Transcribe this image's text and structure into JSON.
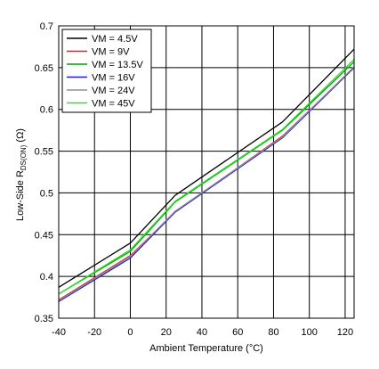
{
  "chart_data": {
    "type": "line",
    "xlabel": "Ambient Temperature (°C)",
    "ylabel_main": "Low-Side R",
    "ylabel_sub": "DS(ON)",
    "ylabel_unit": " (Ω)",
    "xlim": [
      -40,
      125
    ],
    "ylim": [
      0.35,
      0.7
    ],
    "x_ticks": [
      "-40",
      "-20",
      "0",
      "20",
      "40",
      "60",
      "80",
      "100",
      "120"
    ],
    "y_ticks": [
      "0.35",
      "0.4",
      "0.45",
      "0.5",
      "0.55",
      "0.6",
      "0.65",
      "0.7"
    ],
    "grid": true,
    "legend_position": "top-left",
    "x": [
      -40,
      0,
      25,
      85,
      125
    ],
    "series": [
      {
        "name": "VM = 4.5V",
        "color": "#000000",
        "values": [
          0.387,
          0.44,
          0.497,
          0.585,
          0.672
        ]
      },
      {
        "name": "VM = 9V",
        "color": "#e02020",
        "values": [
          0.372,
          0.425,
          0.477,
          0.568,
          0.65
        ]
      },
      {
        "name": "VM = 13.5V",
        "color": "#00a000",
        "values": [
          0.379,
          0.43,
          0.489,
          0.575,
          0.657
        ]
      },
      {
        "name": "VM = 16V",
        "color": "#1c1ce0",
        "values": [
          0.37,
          0.422,
          0.477,
          0.566,
          0.65
        ]
      },
      {
        "name": "VM = 24V",
        "color": "#909090",
        "values": [
          0.371,
          0.424,
          0.478,
          0.567,
          0.651
        ]
      },
      {
        "name": "VM = 45V",
        "color": "#30e030",
        "values": [
          0.379,
          0.432,
          0.49,
          0.576,
          0.66
        ]
      }
    ]
  }
}
